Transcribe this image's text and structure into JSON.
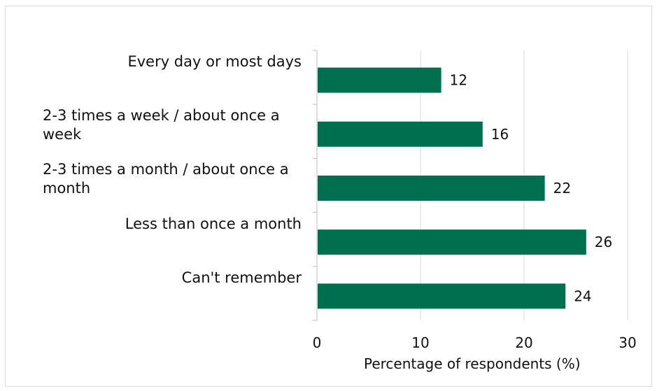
{
  "chart_data": {
    "type": "bar",
    "orientation": "horizontal",
    "categories": [
      "Every day or most days",
      "2-3 times a week / about once a week",
      "2-3 times a month / about once a month",
      "Less than once a month",
      "Can't remember"
    ],
    "values": [
      12,
      16,
      22,
      26,
      24
    ],
    "xlabel": "Percentage of respondents (%)",
    "ylabel": "",
    "xlim": [
      0,
      30
    ],
    "xticks": [
      "0",
      "10",
      "20",
      "30"
    ],
    "grid": "vertical",
    "legend": "none",
    "bar_color": "#006f4f",
    "gridline_color": "#d9d9d9"
  }
}
